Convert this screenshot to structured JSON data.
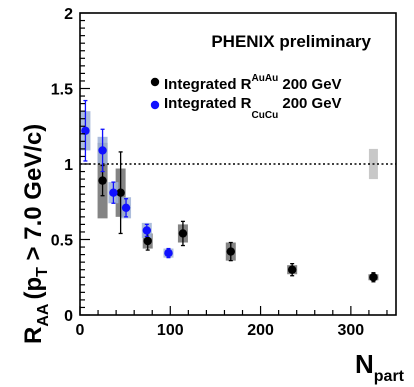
{
  "chart_data": {
    "type": "scatter",
    "title": "PHENIX preliminary",
    "xlabel": {
      "main": "N",
      "sub": "part"
    },
    "ylabel": {
      "main": "R",
      "sub": "AA",
      "rest": "(p",
      "sub2": "T",
      "tail": " > 7.0 GeV/c)"
    },
    "xlim": [
      0,
      350
    ],
    "ylim": [
      0,
      2
    ],
    "xticks": [
      "0",
      "100",
      "200",
      "300"
    ],
    "yticks": [
      "0",
      "0.5",
      "1",
      "1.5",
      "2"
    ],
    "reference_line": 1,
    "legend_placement": "top-right",
    "series": [
      {
        "name_main": "Integrated R",
        "name_sup": "AuAu",
        "name_tail": " 200 GeV",
        "color": "#000000",
        "points": [
          {
            "x": 25,
            "y": 0.89,
            "stat_err": 0.1,
            "sys_lo": 0.25,
            "sys_hi": 0.25
          },
          {
            "x": 45,
            "y": 0.81,
            "stat_err": 0.27,
            "sys_lo": 0.16,
            "sys_hi": 0.16
          },
          {
            "x": 75,
            "y": 0.49,
            "stat_err": 0.06,
            "sys_lo": 0.05,
            "sys_hi": 0.05
          },
          {
            "x": 114,
            "y": 0.54,
            "stat_err": 0.08,
            "sys_lo": 0.06,
            "sys_hi": 0.06
          },
          {
            "x": 167,
            "y": 0.42,
            "stat_err": 0.06,
            "sys_lo": 0.06,
            "sys_hi": 0.06
          },
          {
            "x": 235,
            "y": 0.3,
            "stat_err": 0.04,
            "sys_lo": 0.03,
            "sys_hi": 0.03
          },
          {
            "x": 325,
            "y": 0.25,
            "stat_err": 0.03,
            "sys_lo": 0.02,
            "sys_hi": 0.02
          }
        ]
      },
      {
        "name_main": "Integrated R",
        "name_sup": "CuCu",
        "name_tail": " 200 GeV",
        "color": "#1010ff",
        "points": [
          {
            "x": 6,
            "y": 1.22,
            "stat_err": 0.2,
            "sys_lo": 0.13,
            "sys_hi": 0.13
          },
          {
            "x": 25,
            "y": 1.09,
            "stat_err": 0.14,
            "sys_lo": 0.09,
            "sys_hi": 0.09
          },
          {
            "x": 37,
            "y": 0.81,
            "stat_err": 0.07,
            "sys_lo": 0.07,
            "sys_hi": 0.07
          },
          {
            "x": 51,
            "y": 0.71,
            "stat_err": 0.06,
            "sys_lo": 0.07,
            "sys_hi": 0.07
          },
          {
            "x": 74,
            "y": 0.56,
            "stat_err": 0.04,
            "sys_lo": 0.05,
            "sys_hi": 0.05
          },
          {
            "x": 98,
            "y": 0.41,
            "stat_err": 0.03,
            "sys_lo": 0.03,
            "sys_hi": 0.03
          }
        ]
      }
    ],
    "global_uncertainty": {
      "x": 325,
      "y": 1.0,
      "half_height": 0.1
    }
  }
}
